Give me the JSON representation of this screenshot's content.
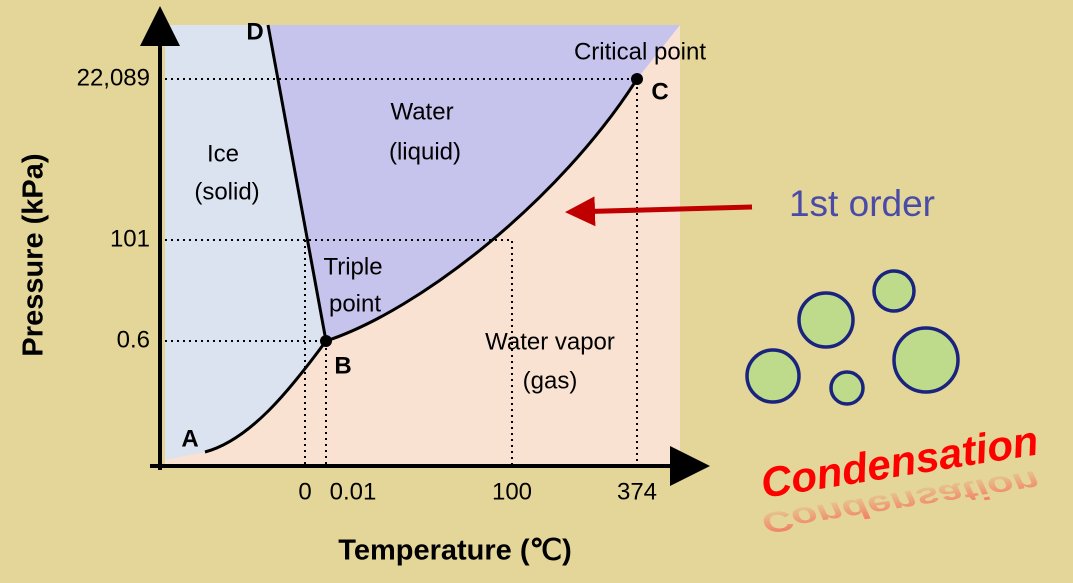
{
  "axes": {
    "y_title": "Pressure (kPa)",
    "x_title": "Temperature (℃)",
    "y_ticks": [
      "22,089",
      "101",
      "0.6"
    ],
    "x_ticks": [
      "0",
      "0.01",
      "100",
      "374"
    ]
  },
  "points": {
    "a": "A",
    "b": "B",
    "c": "C",
    "d": "D"
  },
  "regions": {
    "ice": [
      "Ice",
      "(solid)"
    ],
    "water": [
      "Water",
      "(liquid)"
    ],
    "vapor": [
      "Water vapor",
      "(gas)"
    ]
  },
  "annotations": {
    "triple_point": [
      "Triple",
      "point"
    ],
    "critical_point": "Critical point",
    "order": "1st order",
    "process": "Condensation"
  }
}
